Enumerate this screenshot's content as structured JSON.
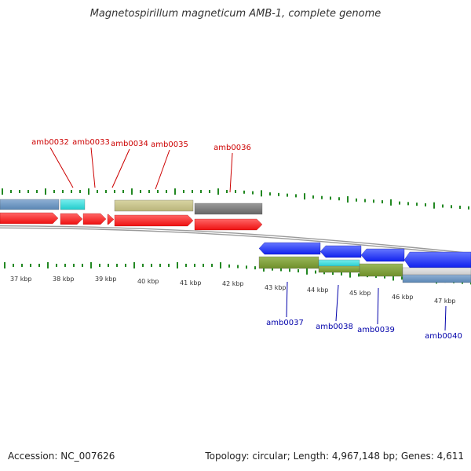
{
  "title": "Magnetospirillum magneticum AMB-1, complete genome",
  "footer": {
    "accession": "Accession: NC_007626",
    "summary": "Topology: circular; Length: 4,967,148 bp; Genes: 4,611"
  },
  "colors": {
    "forward_label": "#cc0000",
    "reverse_label": "#0000aa",
    "tick": "#228822",
    "cds_red": "#ee1111",
    "cds_blue": "#1122ee",
    "steelblue": "#5a86b4",
    "cyan": "#22cccc",
    "khaki": "#b9b47a",
    "gray": "#666666",
    "olive": "#6f8f2a",
    "lightgray": "#c9c9c9",
    "backbone": "#9a9a9a"
  },
  "scale_labels": [
    "37 kbp",
    "38 kbp",
    "39 kbp",
    "40 kbp",
    "41 kbp",
    "42 kbp",
    "43 kbp",
    "44 kbp",
    "45 kbp",
    "46 kbp",
    "47 kbp"
  ],
  "forward_genes": [
    {
      "label": "amb0032"
    },
    {
      "label": "amb0033"
    },
    {
      "label": "amb0034"
    },
    {
      "label": "amb0035"
    },
    {
      "label": "amb0036"
    }
  ],
  "reverse_genes": [
    {
      "label": "amb0037"
    },
    {
      "label": "amb0038"
    },
    {
      "label": "amb0039"
    },
    {
      "label": "amb0040"
    }
  ]
}
